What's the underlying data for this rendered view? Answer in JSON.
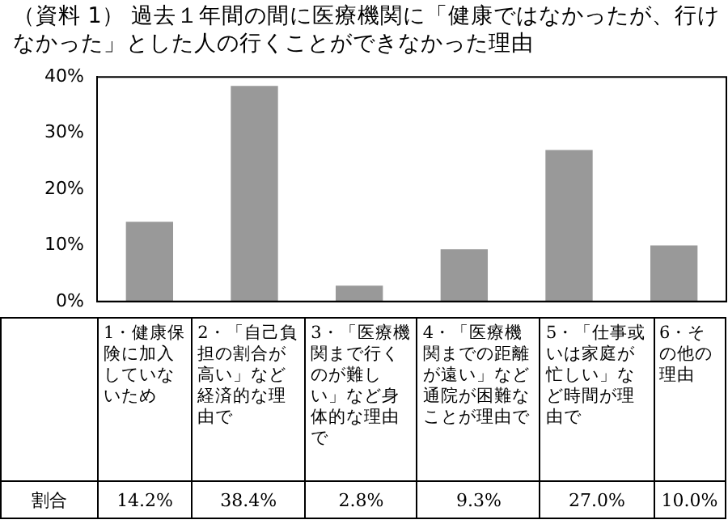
{
  "chart_data": {
    "type": "bar",
    "title": "（資料 1） 過去１年間の間に医療機関に「健康ではなかったが、行けなかった」とした人の行くことができなかった理由",
    "categories": [
      "1・健康保険に加入していないため",
      "2・「自己負担の割合が高い」など経済的な理由で",
      "3・「医療機関まで行くのが難しい」など身体的な理由で",
      "4・「医療機関までの距離が遠い」など通院が困難なことが理由で",
      "5・「仕事或いは家庭が忙しい」など時間が理由で",
      "6・その他の理由"
    ],
    "values": [
      14.2,
      38.4,
      2.8,
      9.3,
      27.0,
      10.0
    ],
    "value_labels": [
      "14.2%",
      "38.4%",
      "2.8%",
      "9.3%",
      "27.0%",
      "10.0%"
    ],
    "color": "#999999",
    "ylim": [
      0,
      40
    ],
    "yticks": [
      {
        "value": 0,
        "label": "0%"
      },
      {
        "value": 10,
        "label": "10%"
      },
      {
        "value": 20,
        "label": "20%"
      },
      {
        "value": 30,
        "label": "30%"
      },
      {
        "value": 40,
        "label": "40%"
      }
    ],
    "annotations": [
      "割合"
    ],
    "grid": false,
    "legend": false
  }
}
